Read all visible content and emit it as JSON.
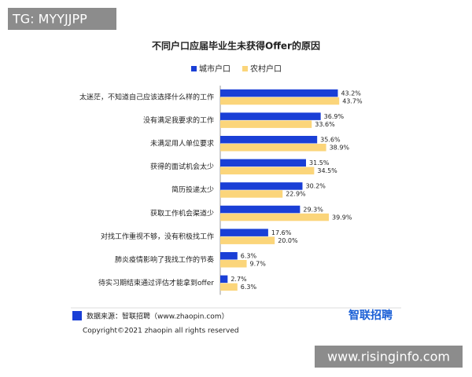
{
  "watermark_top": "TG: MYYJJPP",
  "watermark_bottom": "www.risinginfo.com",
  "chart_data": {
    "type": "bar",
    "orientation": "horizontal",
    "title": "不同户口应届毕业生未获得Offer的原因",
    "categories": [
      "太迷茫，不知道自己应该选择什么样的工作",
      "没有满足我要求的工作",
      "未满足用人单位要求",
      "获得的面试机会太少",
      "简历投递太少",
      "获取工作机会渠道少",
      "对找工作重视不够，没有积极找工作",
      "肺炎疫情影响了我找工作的节奏",
      "待实习期结束通过评估才能拿到offer"
    ],
    "series": [
      {
        "name": "城市户口",
        "color": "#1a3fd6",
        "values": [
          43.2,
          36.9,
          35.6,
          31.5,
          30.2,
          29.3,
          17.6,
          6.3,
          2.7
        ],
        "value_labels": [
          "43.2%",
          "36.9%",
          "35.6%",
          "31.5%",
          "30.2%",
          "29.3%",
          "17.6%",
          "6.3%",
          "2.7%"
        ]
      },
      {
        "name": "农村户口",
        "color": "#fbd57a",
        "values": [
          43.7,
          33.6,
          38.9,
          34.5,
          22.9,
          39.9,
          20.0,
          9.7,
          6.3
        ],
        "value_labels": [
          "43.7%",
          "33.6%",
          "38.9%",
          "34.5%",
          "22.9%",
          "39.9%",
          "20.0%",
          "9.7%",
          "6.3%"
        ]
      }
    ],
    "xlim": [
      0,
      50
    ]
  },
  "footer": {
    "source": "数据来源：智联招聘（www.zhaopin.com）",
    "logo": "智联招聘",
    "copyright": "Copyright©2021 zhaopin all rights reserved"
  }
}
